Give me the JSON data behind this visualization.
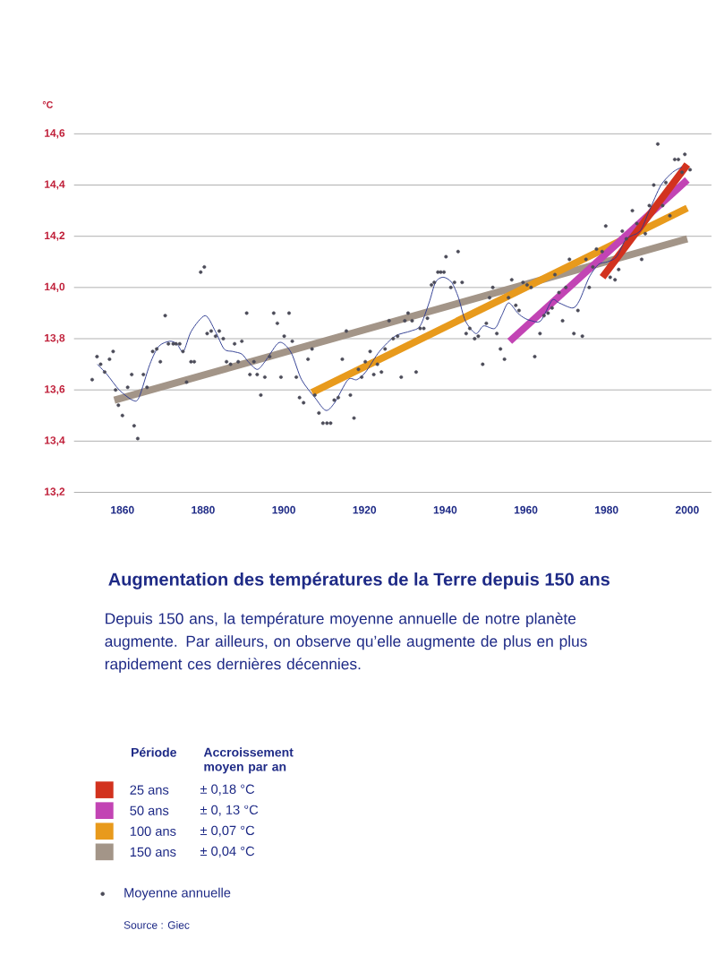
{
  "chart_data": {
    "type": "scatter",
    "title": "Augmentation des températures de la Terre depuis 150 ans",
    "subtitle": "Depuis 150 ans, la température moyenne annuelle de notre planète augmente. Par ailleurs, on observe qu’elle augmente de plus en plus rapidement ces dernières décennies.",
    "ylabel": "°C",
    "legend_title": "Période",
    "annotations": [
      "Accroissement moyen par an",
      "± 0,18 °C",
      "± 0, 13 °C",
      "± 0,07 °C",
      "± 0,04 °C",
      "Source : Giec"
    ],
    "xlim": [
      1848,
      2006
    ],
    "xticks": [
      1860,
      1880,
      1900,
      1920,
      1940,
      1960,
      1980,
      2000
    ],
    "ylim": [
      13.2,
      14.6
    ],
    "yticks": [
      {
        "value": 13.2,
        "label": "13,2"
      },
      {
        "value": 13.4,
        "label": "13,4"
      },
      {
        "value": 13.6,
        "label": "13,6"
      },
      {
        "value": 13.8,
        "label": "13,8"
      },
      {
        "value": 14.0,
        "label": "14,0"
      },
      {
        "value": 14.2,
        "label": "14,2"
      },
      {
        "value": 14.4,
        "label": "14,4"
      },
      {
        "value": 14.6,
        "label": "14,6"
      }
    ],
    "grid": "y",
    "legend": "bottom",
    "series": [
      {
        "name": "Moyenne annuelle",
        "marker": "circle",
        "color": "#4b4b58",
        "x": [
          1852.5,
          1853.7,
          1854.6,
          1855.6,
          1856.8,
          1857.7,
          1858.3,
          1859.0,
          1860.0,
          1861.3,
          1862.3,
          1862.9,
          1863.8,
          1865.2,
          1866.1,
          1867.5,
          1868.5,
          1869.4,
          1870.6,
          1871.4,
          1872.6,
          1873.3,
          1874.2,
          1875.0,
          1875.9,
          1877.0,
          1877.8,
          1879.4,
          1880.3,
          1881.0,
          1882.0,
          1883.1,
          1884.0,
          1885.0,
          1885.8,
          1886.8,
          1887.8,
          1888.7,
          1889.6,
          1890.8,
          1891.6,
          1892.6,
          1893.4,
          1894.3,
          1895.3,
          1896.5,
          1897.5,
          1898.4,
          1899.3,
          1900.1,
          1901.3,
          1902.1,
          1903.1,
          1903.9,
          1904.9,
          1906.0,
          1907.0,
          1907.7,
          1908.7,
          1909.7,
          1910.7,
          1911.6,
          1912.5,
          1913.5,
          1914.5,
          1915.5,
          1916.5,
          1917.4,
          1918.5,
          1919.3,
          1920.2,
          1921.4,
          1922.3,
          1923.2,
          1924.2,
          1925.1,
          1926.1,
          1927.1,
          1928.2,
          1929.1,
          1930.0,
          1930.8,
          1931.8,
          1932.8,
          1933.8,
          1934.7,
          1935.6,
          1936.6,
          1937.3,
          1938.2,
          1938.9,
          1939.7,
          1940.2,
          1941.4,
          1942.3,
          1943.2,
          1944.2,
          1945.2,
          1946.1,
          1947.3,
          1948.2,
          1949.3,
          1950.2,
          1951.0,
          1951.8,
          1952.8,
          1953.7,
          1954.7,
          1955.7,
          1956.5,
          1957.5,
          1958.3,
          1959.3,
          1960.3,
          1961.3,
          1962.2,
          1963.5,
          1964.5,
          1965.5,
          1966.5,
          1967.2,
          1968.2,
          1969.1,
          1969.9,
          1970.8,
          1971.9,
          1972.9,
          1974.0,
          1974.9,
          1975.7,
          1976.6,
          1977.5,
          1978.9,
          1979.8,
          1980.9,
          1982.1,
          1983.0,
          1983.9,
          1984.9,
          1986.4,
          1987.5,
          1988.7,
          1989.6,
          1990.6,
          1991.7,
          1992.7,
          1993.9,
          1994.7,
          1995.7,
          1996.9,
          1997.8,
          1998.7,
          1999.4,
          2000.7
        ],
        "values": [
          13.64,
          13.73,
          13.7,
          13.67,
          13.72,
          13.75,
          13.6,
          13.54,
          13.5,
          13.61,
          13.66,
          13.46,
          13.41,
          13.66,
          13.61,
          13.75,
          13.76,
          13.71,
          13.89,
          13.78,
          13.78,
          13.78,
          13.78,
          13.75,
          13.63,
          13.71,
          13.71,
          14.06,
          14.08,
          13.82,
          13.83,
          13.81,
          13.83,
          13.8,
          13.71,
          13.7,
          13.78,
          13.71,
          13.79,
          13.9,
          13.66,
          13.71,
          13.66,
          13.58,
          13.65,
          13.73,
          13.9,
          13.86,
          13.65,
          13.81,
          13.9,
          13.79,
          13.65,
          13.57,
          13.55,
          13.72,
          13.76,
          13.58,
          13.51,
          13.47,
          13.47,
          13.47,
          13.56,
          13.57,
          13.72,
          13.83,
          13.58,
          13.49,
          13.68,
          13.65,
          13.71,
          13.75,
          13.66,
          13.7,
          13.67,
          13.76,
          13.87,
          13.8,
          13.81,
          13.65,
          13.87,
          13.9,
          13.87,
          13.67,
          13.84,
          13.84,
          13.88,
          14.01,
          14.02,
          14.06,
          14.06,
          14.06,
          14.12,
          14.0,
          14.02,
          14.14,
          14.02,
          13.82,
          13.84,
          13.8,
          13.81,
          13.7,
          13.86,
          13.96,
          14.0,
          13.82,
          13.76,
          13.72,
          13.96,
          14.03,
          13.93,
          13.91,
          14.02,
          14.01,
          14.0,
          13.73,
          13.82,
          13.89,
          13.9,
          13.92,
          14.05,
          13.98,
          13.87,
          14.0,
          14.11,
          13.82,
          13.91,
          13.81,
          14.11,
          14.0,
          14.08,
          14.15,
          14.14,
          14.24,
          14.04,
          14.03,
          14.07,
          14.22,
          14.19,
          14.3,
          14.25,
          14.11,
          14.21,
          14.32,
          14.4,
          14.56,
          14.32,
          14.41,
          14.28,
          14.5,
          14.5,
          14.45,
          14.52,
          14.46
        ]
      },
      {
        "type": "line",
        "color": "#2b3990",
        "x": [
          1853.8,
          1856.2,
          1859.2,
          1862.5,
          1864.1,
          1866.8,
          1869.0,
          1871.7,
          1873.5,
          1875.1,
          1877.1,
          1880.5,
          1883.0,
          1885.2,
          1887.4,
          1889.6,
          1891.2,
          1893.4,
          1895.3,
          1898.4,
          1900.0,
          1902.0,
          1904.4,
          1907.7,
          1910.4,
          1912.6,
          1915.9,
          1918.1,
          1920.3,
          1923.7,
          1927.6,
          1931.5,
          1933.8,
          1936.0,
          1937.6,
          1939.5,
          1941.6,
          1943.3,
          1945.0,
          1947.6,
          1949.5,
          1952.3,
          1954.0,
          1955.7,
          1958.0,
          1959.7,
          1961.4,
          1963.7,
          1966.5,
          1968.2,
          1971.6,
          1973.3,
          1975.7,
          1978.0,
          1980.2,
          1982.5,
          1984.9,
          1988.3,
          1990.6,
          1993.5,
          1996.4,
          1998.7
        ],
        "values": [
          13.7,
          13.66,
          13.6,
          13.56,
          13.57,
          13.7,
          13.77,
          13.79,
          13.78,
          13.75,
          13.83,
          13.89,
          13.83,
          13.76,
          13.75,
          13.74,
          13.71,
          13.68,
          13.71,
          13.78,
          13.78,
          13.74,
          13.64,
          13.57,
          13.52,
          13.55,
          13.64,
          13.64,
          13.67,
          13.75,
          13.81,
          13.83,
          13.85,
          13.94,
          14.02,
          14.04,
          14.02,
          13.96,
          13.87,
          13.82,
          13.85,
          13.84,
          13.89,
          13.94,
          13.9,
          13.88,
          13.87,
          13.87,
          13.95,
          13.94,
          13.92,
          13.95,
          14.04,
          14.09,
          14.1,
          14.12,
          14.19,
          14.22,
          14.3,
          14.4,
          14.45,
          14.47
        ]
      },
      {
        "name": "25 ans",
        "type": "line",
        "color": "#d2321e",
        "x": [
          1979,
          2000
        ],
        "values": [
          14.04,
          14.48
        ]
      },
      {
        "name": "50 ans",
        "type": "line",
        "color": "#c244b4",
        "x": [
          1956,
          2000
        ],
        "values": [
          13.79,
          14.42
        ]
      },
      {
        "name": "100 ans",
        "type": "line",
        "color": "#e89a1c",
        "x": [
          1907,
          2000
        ],
        "values": [
          13.59,
          14.31
        ]
      },
      {
        "name": "150 ans",
        "type": "line",
        "color": "#a39588",
        "x": [
          1858,
          2000
        ],
        "values": [
          13.56,
          14.19
        ]
      }
    ]
  }
}
